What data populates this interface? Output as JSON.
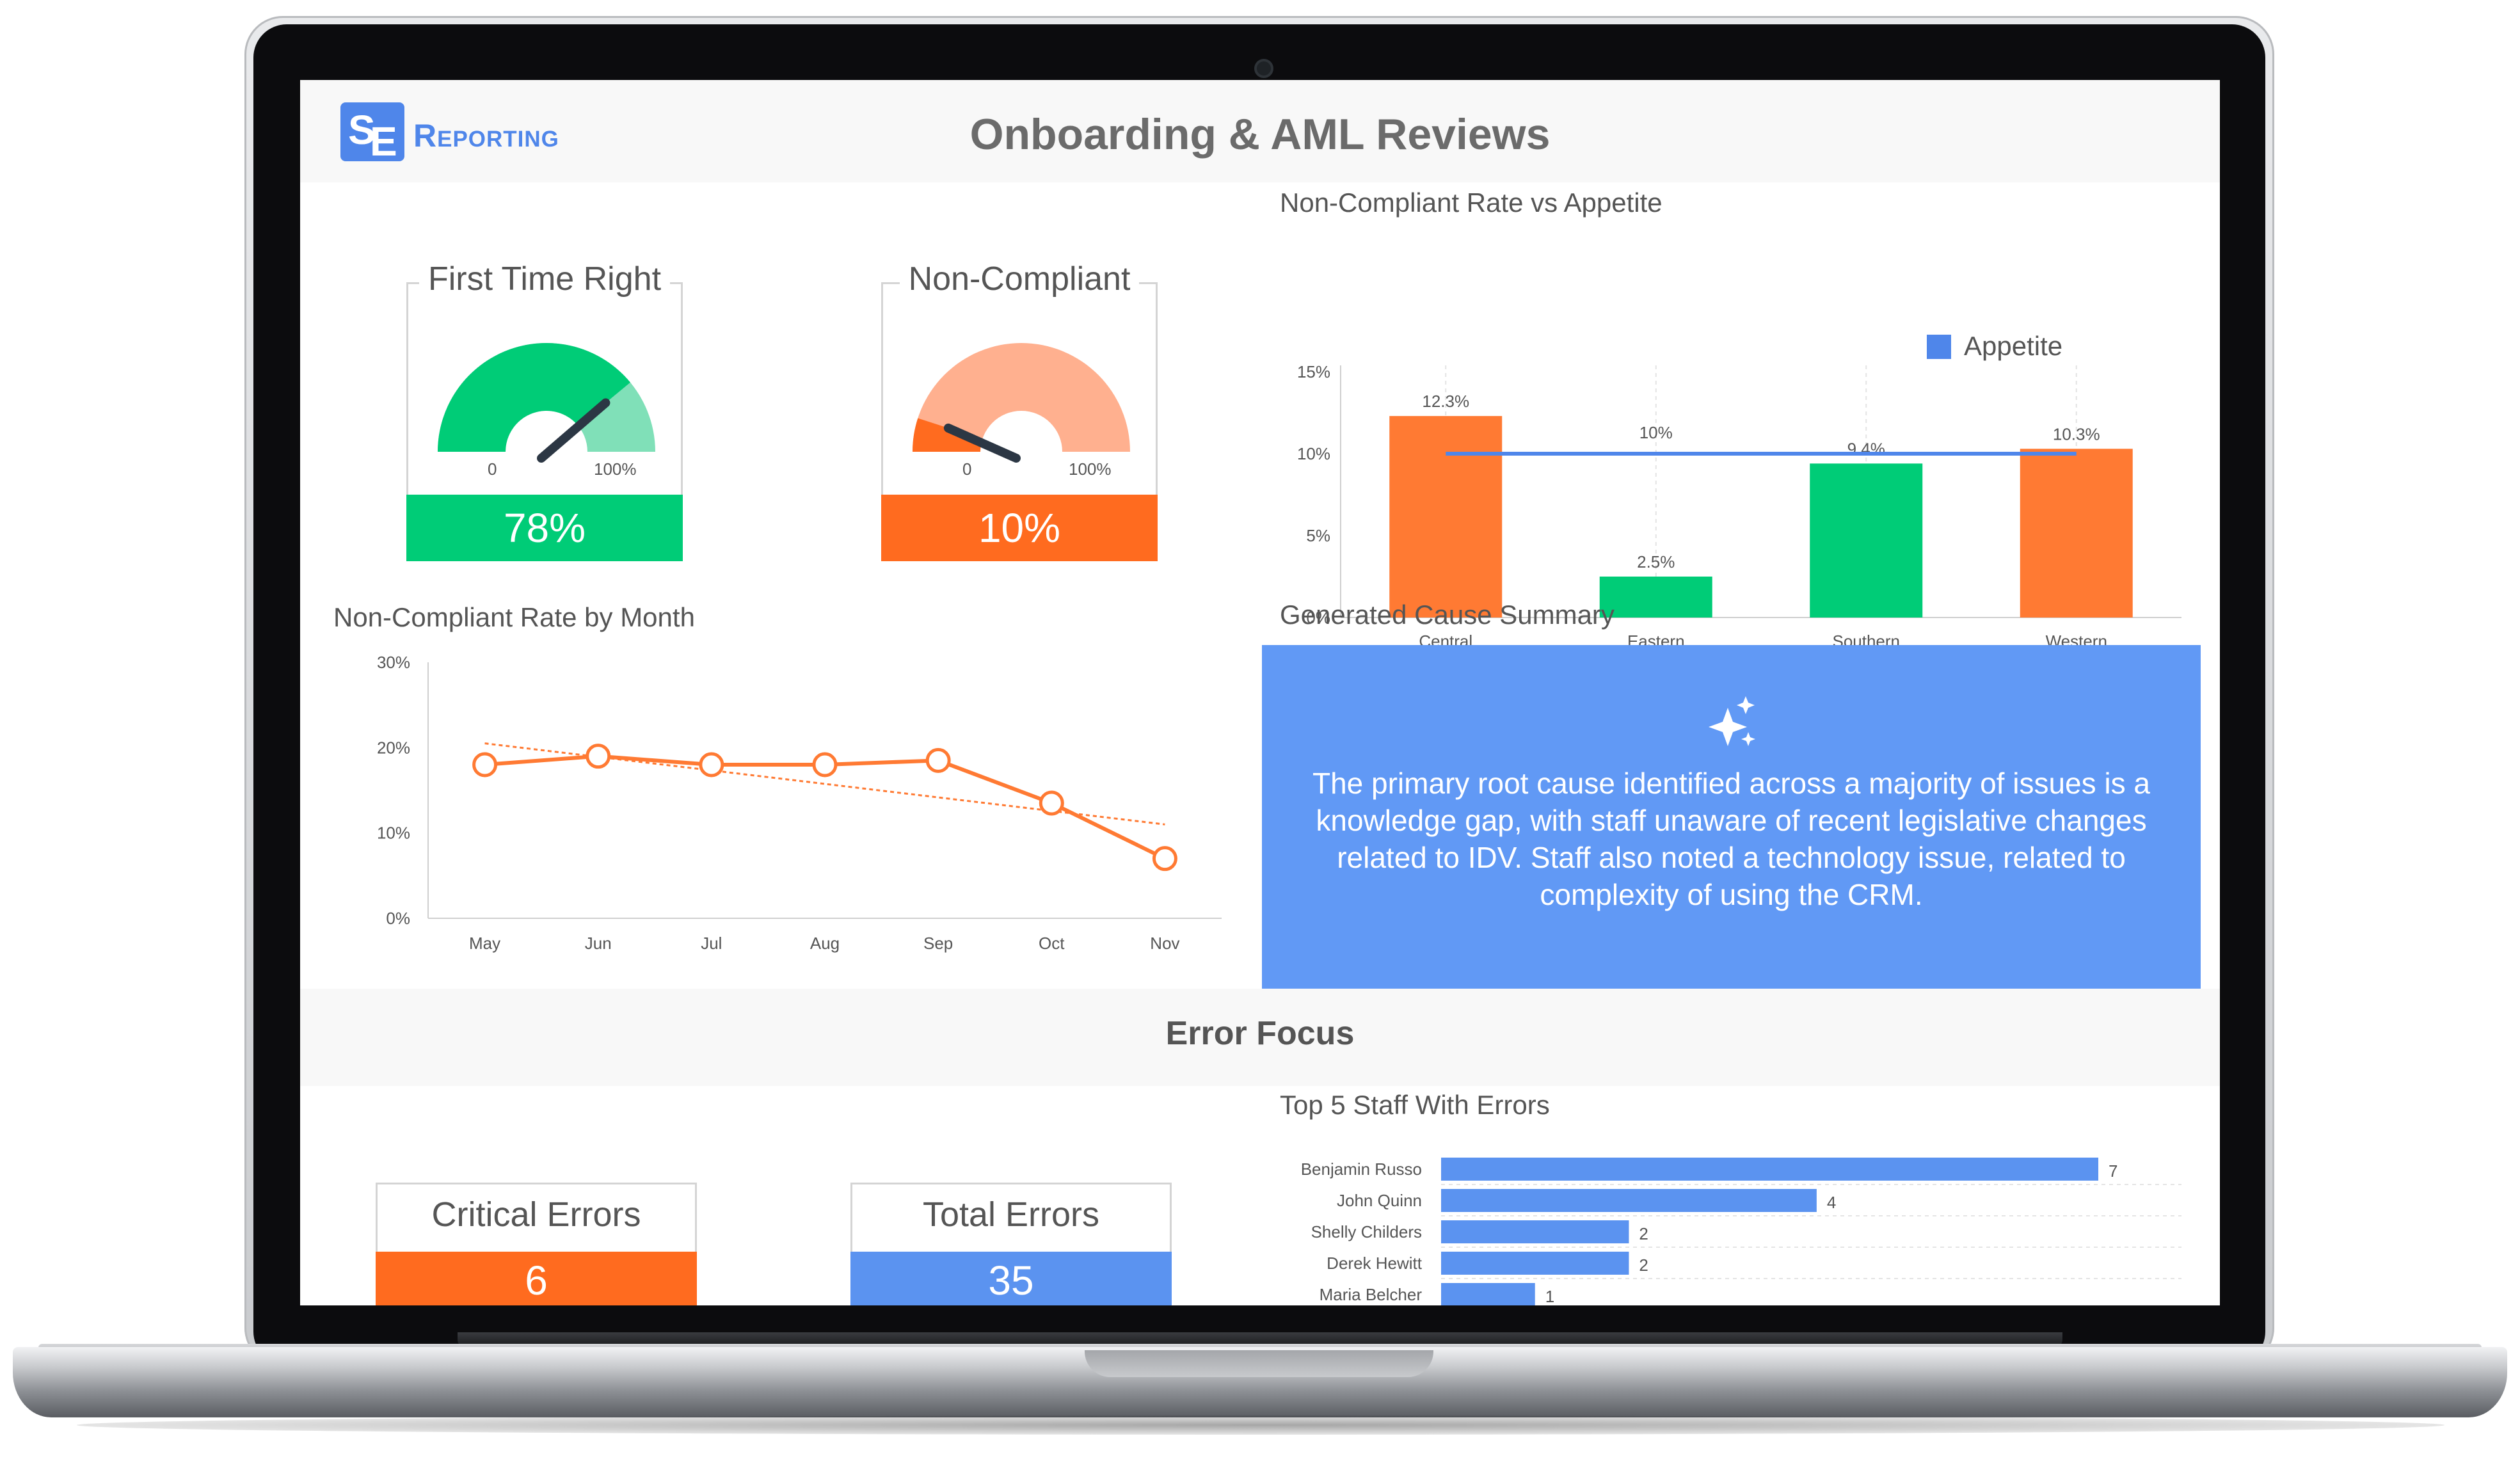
{
  "header": {
    "logo_mark_1": "S",
    "logo_mark_2": "E",
    "logo_text": "Reporting",
    "title": "Onboarding & AML Reviews"
  },
  "kpis": {
    "first_time_right": {
      "title": "First Time Right",
      "value_label": "78%",
      "value": 78,
      "min_label": "0",
      "max_label": "100%",
      "color": "#00cc77",
      "light_color": "#80e0b8"
    },
    "non_compliant": {
      "title": "Non-Compliant",
      "value_label": "10%",
      "value": 10,
      "min_label": "0",
      "max_label": "100%",
      "color": "#ff6b1f",
      "light_color": "#ffb08f"
    }
  },
  "appetite_chart": {
    "title": "Non-Compliant Rate vs Appetite",
    "chart_data": {
      "type": "bar",
      "categories": [
        "Central",
        "Eastern",
        "Southern",
        "Western"
      ],
      "values": [
        12.3,
        2.5,
        9.4,
        10.3
      ],
      "value_labels": [
        "12.3%",
        "2.5%",
        "9.4%",
        "10.3%"
      ],
      "bar_colors": [
        "#ff7a33",
        "#00cc77",
        "#00cc77",
        "#ff7a33"
      ],
      "appetite_value": 10,
      "appetite_label": "10%",
      "legend": [
        "Appetite"
      ],
      "legend_placement": "top",
      "legend_color": "#4f86ea",
      "y_ticks": [
        "0%",
        "5%",
        "10%",
        "15%"
      ],
      "ylim": [
        0,
        15
      ]
    }
  },
  "monthly_chart": {
    "title": "Non-Compliant Rate by Month",
    "chart_data": {
      "type": "line",
      "categories": [
        "May",
        "Jun",
        "Jul",
        "Aug",
        "Sep",
        "Oct",
        "Nov"
      ],
      "values": [
        18,
        19,
        18,
        18,
        18.5,
        13.5,
        7
      ],
      "trend": [
        20.5,
        11
      ],
      "y_ticks": [
        "0%",
        "10%",
        "20%",
        "30%"
      ],
      "ylim": [
        0,
        30
      ],
      "color": "#ff7a33"
    }
  },
  "cause": {
    "title": "Generated Cause Summary",
    "text": "The primary root cause identified across a majority of issues is a knowledge gap, with staff unaware of recent legislative changes related to IDV. Staff also noted a technology issue, related to complexity of using the CRM."
  },
  "error_focus": {
    "title": "Error Focus",
    "critical": {
      "title": "Critical Errors",
      "value": "6",
      "color": "#ff6b1f"
    },
    "total": {
      "title": "Total Errors",
      "value": "35",
      "color": "#5b93f0"
    }
  },
  "staff_chart": {
    "title": "Top 5 Staff With Errors",
    "chart_data": {
      "type": "bar",
      "orientation": "horizontal",
      "categories": [
        "Benjamin Russo",
        "John Quinn",
        "Shelly Childers",
        "Derek Hewitt",
        "Maria Belcher"
      ],
      "values": [
        7,
        4,
        2,
        2,
        1
      ],
      "value_labels": [
        "7",
        "4",
        "2",
        "2",
        "1"
      ],
      "color": "#5b93f0"
    }
  }
}
